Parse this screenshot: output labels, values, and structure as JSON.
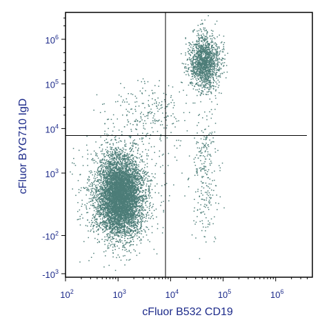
{
  "chart_data": {
    "type": "scatter",
    "title": "",
    "xlabel": "cFluor B532 CD19",
    "ylabel": "cFluor BYG710 IgD",
    "x_scale": "biexponential",
    "y_scale": "biexponential",
    "xlim": [
      100,
      5000000
    ],
    "ylim": [
      -1200,
      4000000
    ],
    "x_ticks": [
      {
        "value": 100,
        "base": "10",
        "exp": "2"
      },
      {
        "value": 1000,
        "base": "10",
        "exp": "3"
      },
      {
        "value": 10000,
        "base": "10",
        "exp": "4"
      },
      {
        "value": 100000,
        "base": "10",
        "exp": "5"
      },
      {
        "value": 1000000,
        "base": "10",
        "exp": "6"
      }
    ],
    "y_ticks": [
      {
        "value": -1000,
        "base": "-10",
        "exp": "3"
      },
      {
        "value": -100,
        "base": "-10",
        "exp": "2"
      },
      {
        "value": 1000,
        "base": "10",
        "exp": "3"
      },
      {
        "value": 10000,
        "base": "10",
        "exp": "4"
      },
      {
        "value": 100000,
        "base": "10",
        "exp": "5"
      },
      {
        "value": 1000000,
        "base": "10",
        "exp": "6"
      }
    ],
    "quadrant_gates": {
      "x": 8000,
      "y": 7000
    },
    "point_color": "#4d7d78",
    "axis_color": "#000000",
    "label_color": "#1c2a8a",
    "grid": false,
    "legend": "none",
    "populations": [
      {
        "center_x": 1100,
        "center_y": 300,
        "spread": "large",
        "relative_density": "very high"
      },
      {
        "center_x": 45000,
        "center_y": 300000,
        "spread": "medium",
        "relative_density": "high"
      },
      {
        "center_x": 3000,
        "center_y": 20000,
        "spread": "diffuse",
        "relative_density": "low"
      },
      {
        "center_x": 45000,
        "center_y": 1000,
        "spread": "diffuse",
        "relative_density": "low"
      }
    ]
  }
}
